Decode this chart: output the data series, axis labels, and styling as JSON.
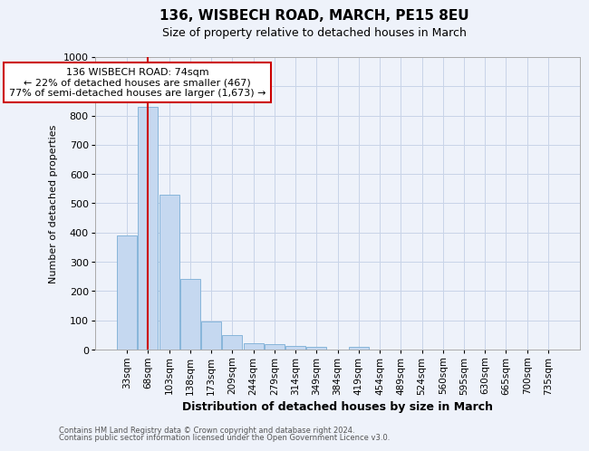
{
  "title": "136, WISBECH ROAD, MARCH, PE15 8EU",
  "subtitle": "Size of property relative to detached houses in March",
  "xlabel": "Distribution of detached houses by size in March",
  "ylabel": "Number of detached properties",
  "footnote1": "Contains HM Land Registry data © Crown copyright and database right 2024.",
  "footnote2": "Contains public sector information licensed under the Open Government Licence v3.0.",
  "annotation_title": "136 WISBECH ROAD: 74sqm",
  "annotation_line2": "← 22% of detached houses are smaller (467)",
  "annotation_line3": "77% of semi-detached houses are larger (1,673) →",
  "bar_labels": [
    "33sqm",
    "68sqm",
    "103sqm",
    "138sqm",
    "173sqm",
    "209sqm",
    "244sqm",
    "279sqm",
    "314sqm",
    "349sqm",
    "384sqm",
    "419sqm",
    "454sqm",
    "489sqm",
    "524sqm",
    "560sqm",
    "595sqm",
    "630sqm",
    "665sqm",
    "700sqm",
    "735sqm"
  ],
  "bar_values": [
    390,
    830,
    530,
    243,
    95,
    50,
    22,
    20,
    13,
    10,
    0,
    10,
    0,
    0,
    0,
    0,
    0,
    0,
    0,
    0,
    0
  ],
  "bar_color": "#c5d8f0",
  "bar_edge_color": "#7aaed6",
  "vline_x": 1.0,
  "vline_color": "#cc0000",
  "ylim": [
    0,
    1000
  ],
  "yticks": [
    0,
    100,
    200,
    300,
    400,
    500,
    600,
    700,
    800,
    900,
    1000
  ],
  "annotation_box_color": "#cc0000",
  "background_color": "#eef2fa",
  "grid_color": "#c8d4e8",
  "title_fontsize": 11,
  "subtitle_fontsize": 9,
  "xlabel_fontsize": 9,
  "ylabel_fontsize": 8,
  "tick_fontsize": 8,
  "footnote_fontsize": 6,
  "annotation_fontsize": 8
}
